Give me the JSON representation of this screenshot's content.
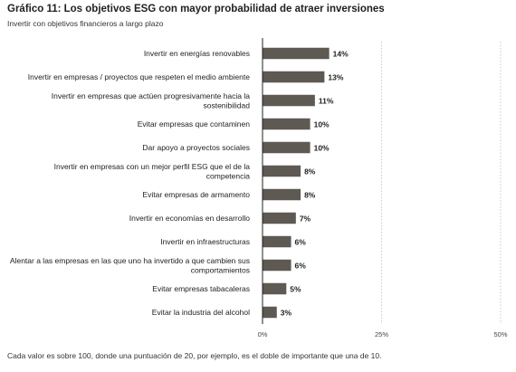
{
  "title": "Gráfico 11: Los objetivos ESG con mayor probabilidad de atraer inversiones",
  "subtitle": "Invertir con objetivos financieros a largo plazo",
  "footnote": "Cada valor es sobre 100, donde una puntuación de 20, por ejemplo, es el doble de importante que una de 10.",
  "colors": {
    "bar": "#5e5953",
    "axis": "#222222",
    "grid": "#bdbdbd"
  },
  "chart_data": {
    "type": "bar",
    "orientation": "horizontal",
    "categories": [
      [
        "Invertir en energías renovables"
      ],
      [
        "Invertir en empresas / proyectos que respeten el medio ambiente"
      ],
      [
        "Invertir en empresas que actúen progresivamente hacia la",
        "sostenibilidad"
      ],
      [
        "Evitar empresas que contaminen"
      ],
      [
        "Dar apoyo a proyectos sociales"
      ],
      [
        "Invertir en empresas con un mejor perfil ESG que el de la",
        "competencia"
      ],
      [
        "Evitar empresas de armamento"
      ],
      [
        "Invertir en economías en desarrollo"
      ],
      [
        "Invertir en infraestructuras"
      ],
      [
        "Alentar a las empresas en las que uno ha invertido a que cambien sus",
        "comportamientos"
      ],
      [
        "Evitar empresas tabacaleras"
      ],
      [
        "Evitar la industria del alcohol"
      ]
    ],
    "values": [
      14,
      13,
      11,
      10,
      10,
      8,
      8,
      7,
      6,
      6,
      5,
      3
    ],
    "value_labels": [
      "14%",
      "13%",
      "11%",
      "10%",
      "10%",
      "8%",
      "8%",
      "7%",
      "6%",
      "6%",
      "5%",
      "3%"
    ],
    "xlim": [
      0,
      50
    ],
    "xticks": [
      0,
      25,
      50
    ],
    "xtick_labels": [
      "0%",
      "25%",
      "50%"
    ],
    "grid": "vertical dotted at 25% and 50%"
  }
}
